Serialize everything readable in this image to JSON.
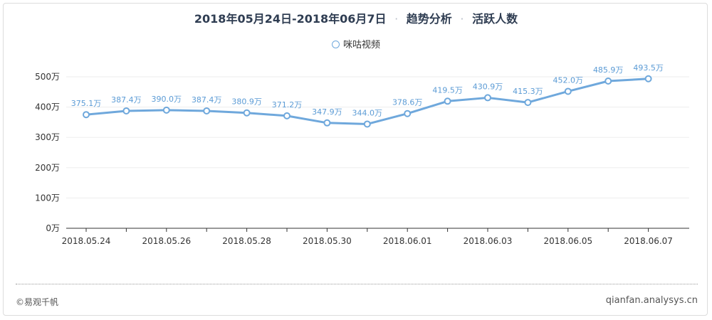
{
  "title": {
    "date_range": "2018年05月24日-2018年06月7日",
    "separator": "·",
    "section": "趋势分析",
    "metric": "活跃人数"
  },
  "legend": {
    "series_name": "咪咕视频"
  },
  "footer": {
    "left": "©易观千帆",
    "right": "qianfan.analysys.cn"
  },
  "colors": {
    "line": "#6fa8dc",
    "label": "#5b9bd5",
    "axis_text": "#333333",
    "grid": "#eeeeee"
  },
  "chart_data": {
    "type": "line",
    "title": "2018年05月24日-2018年06月7日 · 趋势分析 · 活跃人数",
    "x": [
      "2018.05.24",
      "2018.05.25",
      "2018.05.26",
      "2018.05.27",
      "2018.05.28",
      "2018.05.29",
      "2018.05.30",
      "2018.05.31",
      "2018.06.01",
      "2018.06.02",
      "2018.06.03",
      "2018.06.04",
      "2018.06.05",
      "2018.06.06",
      "2018.06.07"
    ],
    "x_tick_labels": [
      "2018.05.24",
      "2018.05.26",
      "2018.05.28",
      "2018.05.30",
      "2018.06.01",
      "2018.06.03",
      "2018.06.05",
      "2018.06.07"
    ],
    "series": [
      {
        "name": "咪咕视频",
        "values": [
          375.1,
          387.4,
          390.0,
          387.4,
          380.9,
          371.2,
          347.9,
          344.0,
          378.6,
          419.5,
          430.9,
          415.3,
          452.0,
          485.9,
          493.5
        ],
        "labels": [
          "375.1万",
          "387.4万",
          "390.0万",
          "387.4万",
          "380.9万",
          "371.2万",
          "347.9万",
          "344.0万",
          "378.6万",
          "419.5万",
          "430.9万",
          "415.3万",
          "452.0万",
          "485.9万",
          "493.5万"
        ]
      }
    ],
    "y_ticks": [
      0,
      100,
      200,
      300,
      400,
      500
    ],
    "y_tick_labels": [
      "0万",
      "100万",
      "200万",
      "300万",
      "400万",
      "500万"
    ],
    "ylim": [
      0,
      500
    ],
    "grid": true,
    "legend_position": "top-center"
  }
}
